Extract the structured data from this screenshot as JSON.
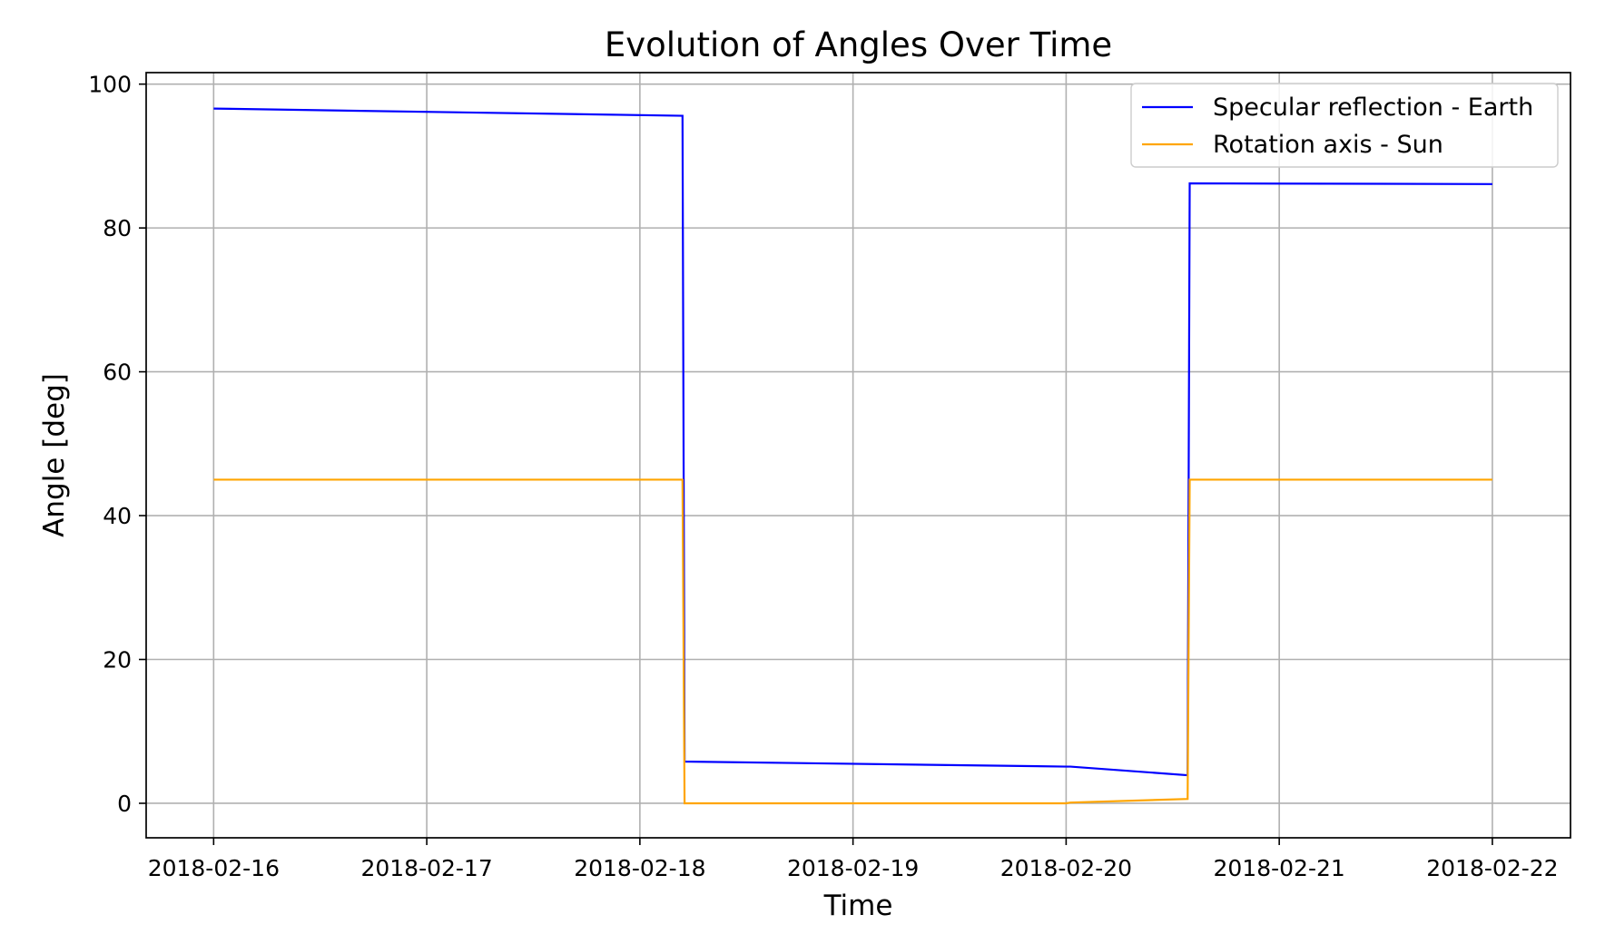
{
  "chart_data": {
    "type": "line",
    "title": "Evolution of Angles Over Time",
    "xlabel": "Time",
    "ylabel": "Angle [deg]",
    "x_ticks": [
      "2018-02-16",
      "2018-02-17",
      "2018-02-18",
      "2018-02-19",
      "2018-02-20",
      "2018-02-21",
      "2018-02-22"
    ],
    "y_ticks": [
      "0",
      "20",
      "40",
      "60",
      "80",
      "100"
    ],
    "xlim": [
      "2018-02-15T16:24",
      "2018-02-22T08:48"
    ],
    "ylim": [
      -4.8,
      101.6
    ],
    "grid": true,
    "legend_position": "top-right",
    "series": [
      {
        "name": "Specular reflection - Earth",
        "color": "#0000ff",
        "points": [
          [
            "2018-02-16T00:00",
            96.6
          ],
          [
            "2018-02-18T04:48",
            95.6
          ],
          [
            "2018-02-18T05:02",
            5.8
          ],
          [
            "2018-02-20T00:00",
            5.1
          ],
          [
            "2018-02-20T00:29",
            5.1
          ],
          [
            "2018-02-20T13:41",
            3.9
          ],
          [
            "2018-02-20T13:55",
            86.2
          ],
          [
            "2018-02-22T00:00",
            86.1
          ]
        ]
      },
      {
        "name": "Rotation axis - Sun",
        "color": "#ffa500",
        "points": [
          [
            "2018-02-16T00:00",
            45.0
          ],
          [
            "2018-02-18T04:48",
            45.0
          ],
          [
            "2018-02-18T05:02",
            0.0
          ],
          [
            "2018-02-20T00:00",
            0.0
          ],
          [
            "2018-02-20T00:29",
            0.1
          ],
          [
            "2018-02-20T13:41",
            0.6
          ],
          [
            "2018-02-20T13:55",
            45.0
          ],
          [
            "2018-02-22T00:00",
            45.0
          ]
        ]
      }
    ]
  }
}
